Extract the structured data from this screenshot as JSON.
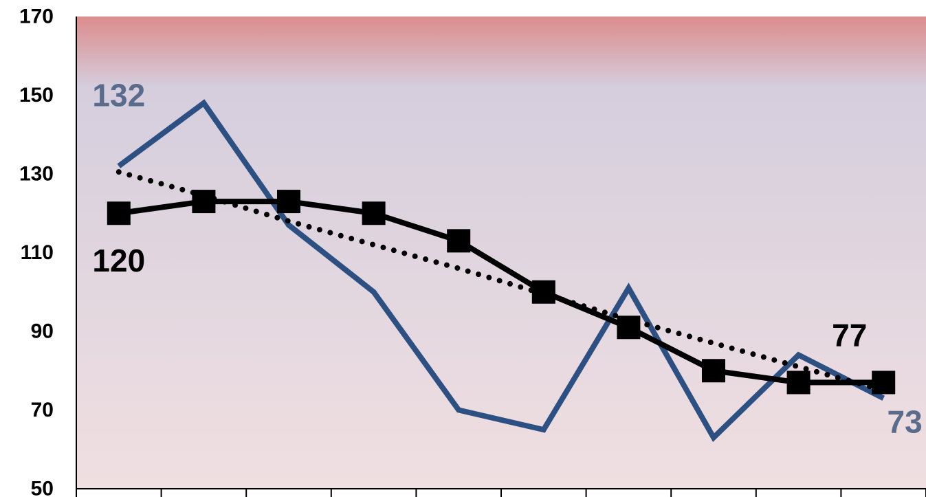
{
  "chart_data": {
    "type": "line",
    "ylim": [
      50,
      170
    ],
    "y_ticks": [
      "170",
      "150",
      "130",
      "110",
      "90",
      "70",
      "50"
    ],
    "x": [
      1,
      2,
      3,
      4,
      5,
      6,
      7,
      8,
      9,
      10
    ],
    "grid": false,
    "background": {
      "top_color": "#dc8c8c",
      "middle_color": "#d5cedd",
      "bottom_color": "#f0dfe1"
    },
    "series": [
      {
        "style": "solid-line",
        "color": "#2d5083",
        "values": [
          132,
          148,
          117,
          100,
          70,
          65,
          101,
          63,
          84,
          73
        ]
      },
      {
        "style": "line-with-square-markers",
        "color": "#000000",
        "values": [
          120,
          123,
          123,
          120,
          113,
          100,
          91,
          80,
          77,
          77
        ]
      },
      {
        "style": "dotted-trendline",
        "color": "#000000",
        "values": [
          130.5,
          124.5,
          118,
          112,
          106,
          99.5,
          93,
          87,
          81,
          75
        ]
      }
    ],
    "annotations": [
      {
        "text": "132",
        "color": "#5a6b8c",
        "x": 1,
        "y": 150
      },
      {
        "text": "120",
        "color": "#000000",
        "x": 1,
        "y": 108
      },
      {
        "text": "77",
        "color": "#000000",
        "x": 9.6,
        "y": 89
      },
      {
        "text": "73",
        "color": "#5a6b8c",
        "x": 10.25,
        "y": 67
      }
    ]
  }
}
